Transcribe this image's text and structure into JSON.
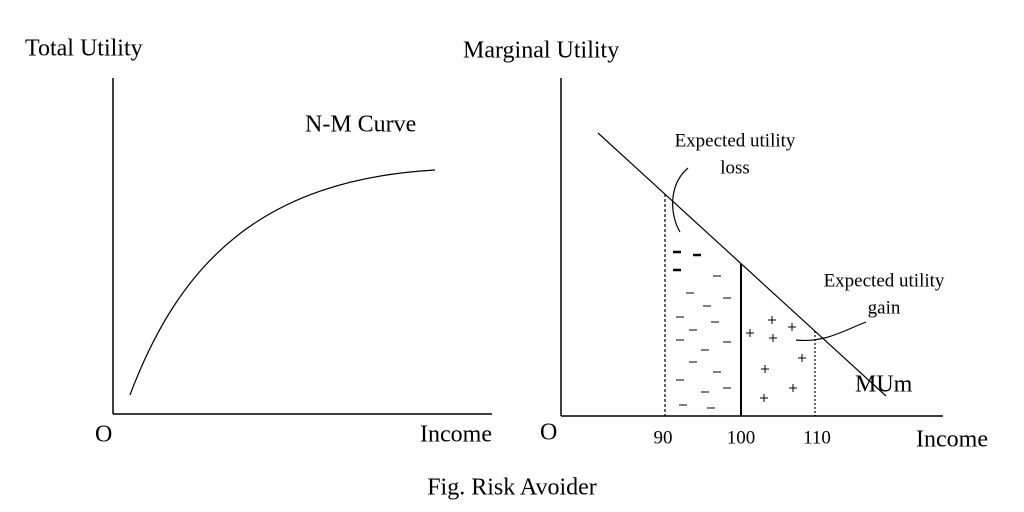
{
  "left_panel": {
    "y_label": "Total Utility",
    "curve_label": "N-M Curve",
    "origin": "O",
    "x_label": "Income"
  },
  "right_panel": {
    "y_label": "Marginal Utility",
    "origin": "O",
    "x_ticks": [
      "90",
      "100",
      "110"
    ],
    "x_label": "Income",
    "curve_label": "MUm",
    "annotations": [
      {
        "lines": [
          "Expected utility",
          "loss"
        ]
      },
      {
        "lines": [
          "Expected utility",
          "gain"
        ]
      }
    ]
  },
  "caption": "Fig. Risk Avoider"
}
